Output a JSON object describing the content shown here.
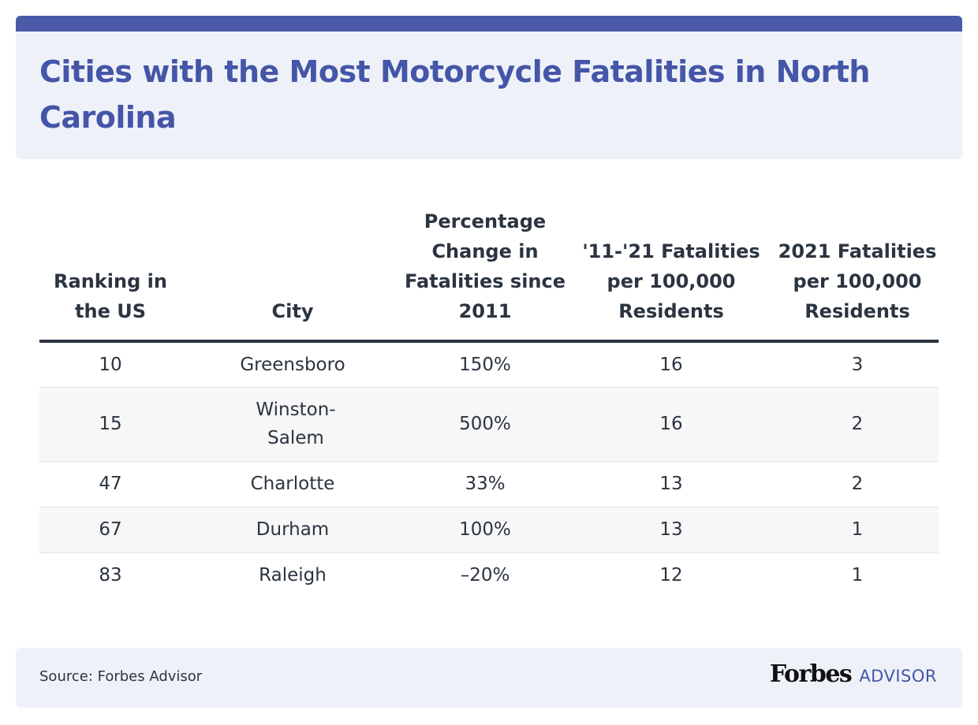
{
  "title": "Cities with the Most Motorcycle Fatalities in North Carolina",
  "colors": {
    "accent": "#4a5aa8",
    "title": "#4555a8",
    "text": "#2b3440",
    "panel": "#eef2f8",
    "row_alt": "#f7f7f7"
  },
  "chart_data": {
    "type": "table",
    "title": "Cities with the Most Motorcycle Fatalities in North Carolina",
    "columns": [
      "Ranking in the US",
      "City",
      "Percentage Change in Fatalities since 2011",
      "'11-'21 Fatalities per 100,000 Residents",
      "2021 Fatalities per 100,000 Residents"
    ],
    "rows": [
      [
        "10",
        "Greensboro",
        "150%",
        "16",
        "3"
      ],
      [
        "15",
        "Winston-Salem",
        "500%",
        "16",
        "2"
      ],
      [
        "47",
        "Charlotte",
        "33%",
        "13",
        "2"
      ],
      [
        "67",
        "Durham",
        "100%",
        "13",
        "1"
      ],
      [
        "83",
        "Raleigh",
        "–20%",
        "12",
        "1"
      ]
    ]
  },
  "footer": {
    "source": "Source: Forbes Advisor",
    "logo_wordmark": "Forbes",
    "logo_suffix": "ADVISOR"
  }
}
